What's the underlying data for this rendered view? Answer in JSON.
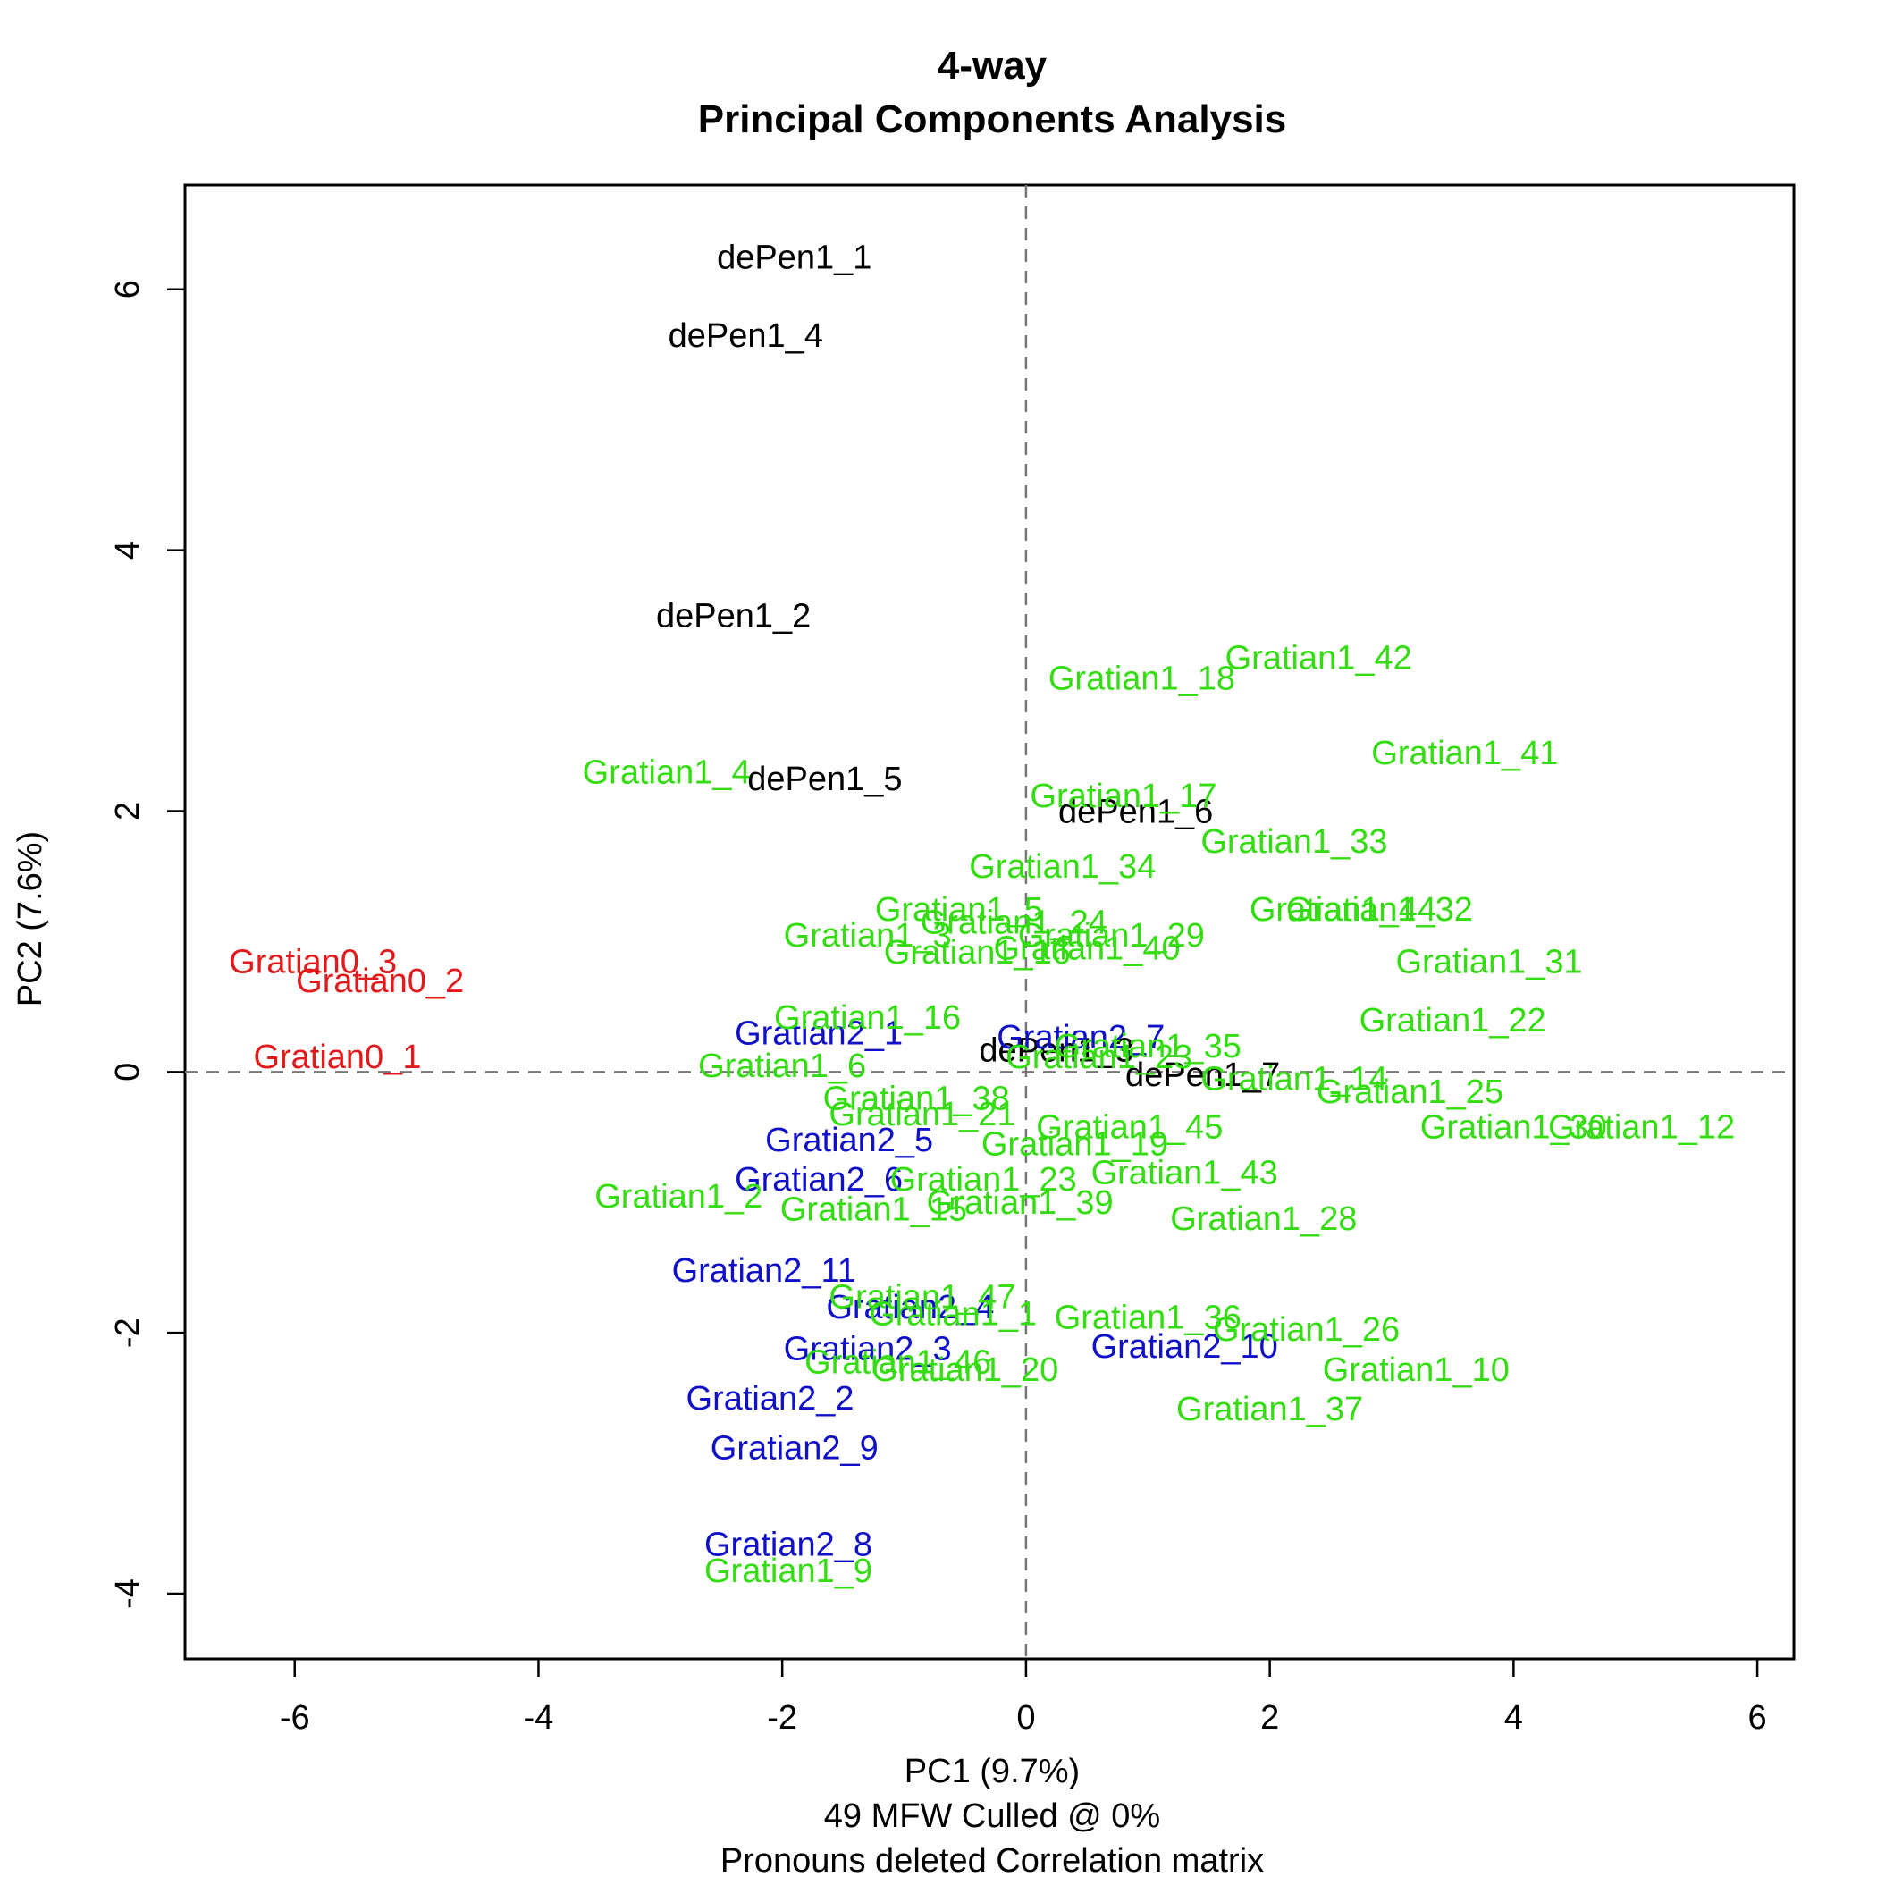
{
  "chart_data": {
    "type": "scatter",
    "title": [
      "4-way",
      "Principal Components Analysis"
    ],
    "xlabel": [
      "PC1 (9.7%)",
      "49 MFW  Culled @ 0%",
      "Pronouns deleted Correlation matrix"
    ],
    "ylabel": "PC2 (7.6%)",
    "xlim": [
      -6.9,
      6.3
    ],
    "ylim": [
      -4.5,
      6.8
    ],
    "xticks": [
      -6,
      -4,
      -2,
      0,
      2,
      4,
      6
    ],
    "yticks": [
      -4,
      -2,
      0,
      2,
      4,
      6
    ],
    "reference_lines": {
      "x": 0,
      "y": 0,
      "style": "dashed",
      "color": "#777777"
    },
    "grid": false,
    "legend": "none",
    "series": [
      {
        "color": "#e31a1c",
        "points": [
          {
            "label": "Gratian0_3",
            "x": -5.85,
            "y": 0.85
          },
          {
            "label": "Gratian0_2",
            "x": -5.3,
            "y": 0.7
          },
          {
            "label": "Gratian0_1",
            "x": -5.65,
            "y": 0.12
          }
        ]
      },
      {
        "color": "#000000",
        "points": [
          {
            "label": "dePen1_1",
            "x": -1.9,
            "y": 6.25
          },
          {
            "label": "dePen1_4",
            "x": -2.3,
            "y": 5.65
          },
          {
            "label": "dePen1_2",
            "x": -2.4,
            "y": 3.5
          },
          {
            "label": "dePen1_5",
            "x": -1.65,
            "y": 2.25
          },
          {
            "label": "dePen1_6",
            "x": 0.9,
            "y": 2.0
          },
          {
            "label": "dePen1_3",
            "x": 0.25,
            "y": 0.17
          },
          {
            "label": "dePen1_7",
            "x": 1.45,
            "y": -0.02
          }
        ]
      },
      {
        "color": "#1010c8",
        "points": [
          {
            "label": "Gratian2_1",
            "x": -1.7,
            "y": 0.3
          },
          {
            "label": "Gratian2_7",
            "x": 0.45,
            "y": 0.27
          },
          {
            "label": "Gratian2_5",
            "x": -1.45,
            "y": -0.52
          },
          {
            "label": "Gratian2_6",
            "x": -1.7,
            "y": -0.82
          },
          {
            "label": "Gratian2_11",
            "x": -2.15,
            "y": -1.52
          },
          {
            "label": "Gratian2_4",
            "x": -0.95,
            "y": -1.8
          },
          {
            "label": "Gratian2_3",
            "x": -1.3,
            "y": -2.12
          },
          {
            "label": "Gratian2_10",
            "x": 1.3,
            "y": -2.1
          },
          {
            "label": "Gratian2_2",
            "x": -2.1,
            "y": -2.5
          },
          {
            "label": "Gratian2_9",
            "x": -1.9,
            "y": -2.88
          },
          {
            "label": "Gratian2_8",
            "x": -1.95,
            "y": -3.62
          }
        ]
      },
      {
        "color": "#33dd11",
        "points": [
          {
            "label": "Gratian1_42",
            "x": 2.4,
            "y": 3.18
          },
          {
            "label": "Gratian1_18",
            "x": 0.95,
            "y": 3.02
          },
          {
            "label": "Gratian1_41",
            "x": 3.6,
            "y": 2.45
          },
          {
            "label": "Gratian1_4",
            "x": -2.95,
            "y": 2.3
          },
          {
            "label": "Gratian1_17",
            "x": 0.8,
            "y": 2.12
          },
          {
            "label": "Gratian1_33",
            "x": 2.2,
            "y": 1.77
          },
          {
            "label": "Gratian1_34",
            "x": 0.3,
            "y": 1.58
          },
          {
            "label": "Gratian1_5",
            "x": -0.55,
            "y": 1.25
          },
          {
            "label": "Gratian1_44",
            "x": 2.6,
            "y": 1.25
          },
          {
            "label": "Gratian1_32",
            "x": 2.9,
            "y": 1.25
          },
          {
            "label": "Gratian1_24",
            "x": -0.1,
            "y": 1.15
          },
          {
            "label": "Gratian1_29",
            "x": 0.7,
            "y": 1.05
          },
          {
            "label": "Gratian1_3",
            "x": -1.3,
            "y": 1.05
          },
          {
            "label": "Gratian1_40",
            "x": 0.5,
            "y": 0.95
          },
          {
            "label": "Gratian1_16",
            "x": -0.4,
            "y": 0.92
          },
          {
            "label": "Gratian1_31",
            "x": 3.8,
            "y": 0.85
          },
          {
            "label": "Gratian1_22",
            "x": 3.5,
            "y": 0.4
          },
          {
            "label": "Gratian1_16",
            "x": -1.3,
            "y": 0.42
          },
          {
            "label": "Gratian1_35",
            "x": 1.0,
            "y": 0.2
          },
          {
            "label": "Gratian1_23",
            "x": 0.6,
            "y": 0.12
          },
          {
            "label": "Gratian1_6",
            "x": -2.0,
            "y": 0.05
          },
          {
            "label": "Gratian1_14",
            "x": 2.2,
            "y": -0.05
          },
          {
            "label": "Gratian1_25",
            "x": 3.15,
            "y": -0.15
          },
          {
            "label": "Gratian1_38",
            "x": -0.9,
            "y": -0.2
          },
          {
            "label": "Gratian1_21",
            "x": -0.85,
            "y": -0.32
          },
          {
            "label": "Gratian1_45",
            "x": 0.85,
            "y": -0.42
          },
          {
            "label": "Gratian1_19",
            "x": 0.4,
            "y": -0.55
          },
          {
            "label": "Gratian1_30",
            "x": 4.0,
            "y": -0.42
          },
          {
            "label": "Gratian1_12",
            "x": 5.05,
            "y": -0.42
          },
          {
            "label": "Gratian1_43",
            "x": 1.3,
            "y": -0.77
          },
          {
            "label": "Gratian1_23",
            "x": -0.35,
            "y": -0.82
          },
          {
            "label": "Gratian1_39",
            "x": -0.05,
            "y": -1.0
          },
          {
            "label": "Gratian1_2",
            "x": -2.85,
            "y": -0.95
          },
          {
            "label": "Gratian1_15",
            "x": -1.25,
            "y": -1.05
          },
          {
            "label": "Gratian1_28",
            "x": 1.95,
            "y": -1.12
          },
          {
            "label": "Gratian1_47",
            "x": -0.85,
            "y": -1.72
          },
          {
            "label": "Gratian1_1",
            "x": -0.6,
            "y": -1.85
          },
          {
            "label": "Gratian1_36",
            "x": 1.0,
            "y": -1.88
          },
          {
            "label": "Gratian1_26",
            "x": 2.3,
            "y": -1.97
          },
          {
            "label": "Gratian1_46",
            "x": -1.05,
            "y": -2.22
          },
          {
            "label": "Gratian1_20",
            "x": -0.5,
            "y": -2.28
          },
          {
            "label": "Gratian1_10",
            "x": 3.2,
            "y": -2.28
          },
          {
            "label": "Gratian1_37",
            "x": 2.0,
            "y": -2.58
          },
          {
            "label": "Gratian1_9",
            "x": -1.95,
            "y": -3.82
          }
        ]
      }
    ]
  }
}
